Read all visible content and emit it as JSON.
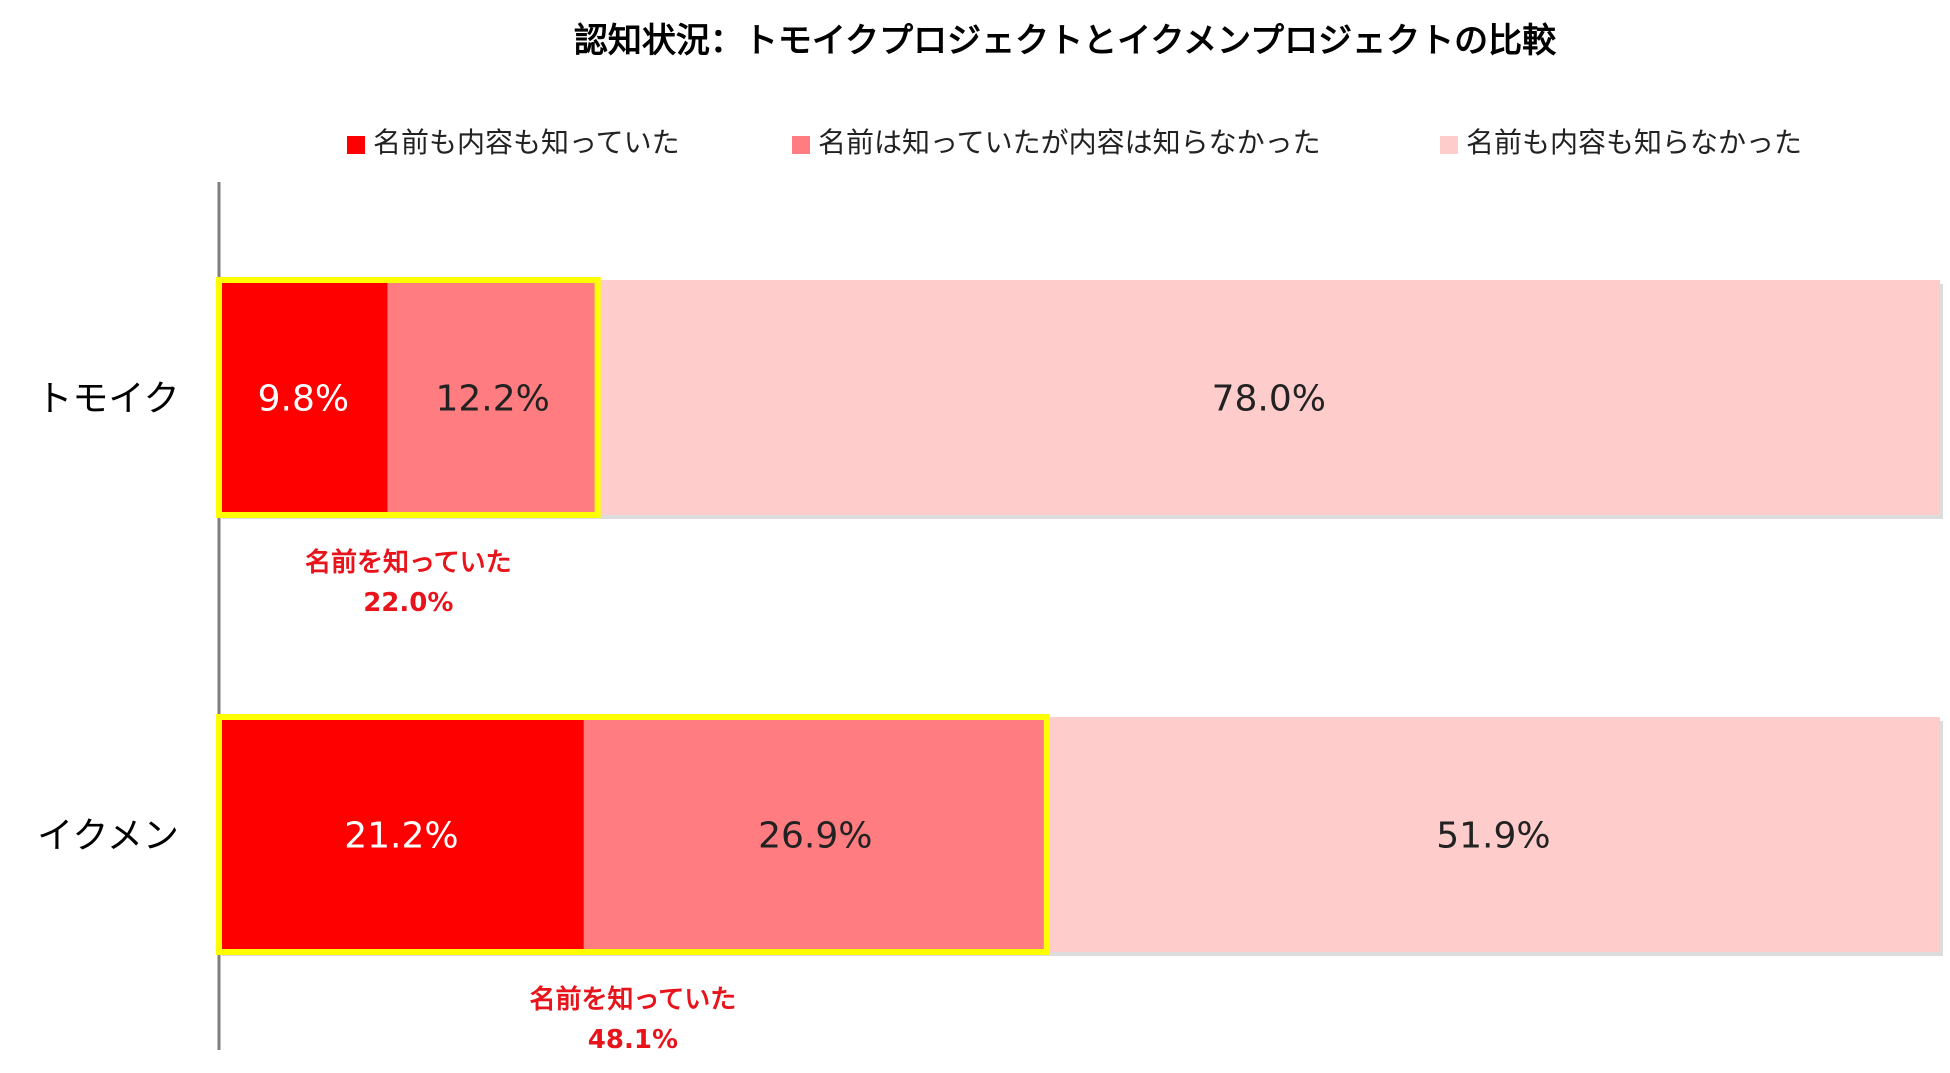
{
  "chart_data": {
    "type": "bar",
    "orientation": "horizontal",
    "stacked": true,
    "title": "認知状況：トモイクプロジェクトとイクメンプロジェクトの比較",
    "categories": [
      "トモイク",
      "イクメン"
    ],
    "series": [
      {
        "name": "名前も内容も知っていた",
        "values": [
          9.8,
          21.2
        ],
        "color": "#ff0000",
        "label_color": "#ffffff"
      },
      {
        "name": "名前は知っていたが内容は知らなかった",
        "values": [
          12.2,
          26.9
        ],
        "color": "#ff7c80",
        "label_color": "#222222"
      },
      {
        "name": "名前も内容も知らなかった",
        "values": [
          78.0,
          51.9
        ],
        "color": "#ffcccc",
        "label_color": "#222222"
      }
    ],
    "data_labels": [
      [
        "9.8%",
        "12.2%",
        "78.0%"
      ],
      [
        "21.2%",
        "26.9%",
        "51.9%"
      ]
    ],
    "annotations": [
      {
        "line1": "名前を知っていた",
        "line2": "22.0%",
        "value": 22.0
      },
      {
        "line1": "名前を知っていた",
        "line2": "48.1%",
        "value": 48.1
      }
    ],
    "xlim": [
      0,
      100
    ],
    "legend": "top",
    "grid": false,
    "colors": {
      "highlight_border": "#ffff00",
      "annotation_text": "#e8141b",
      "axis": "#7f7f7f"
    }
  }
}
